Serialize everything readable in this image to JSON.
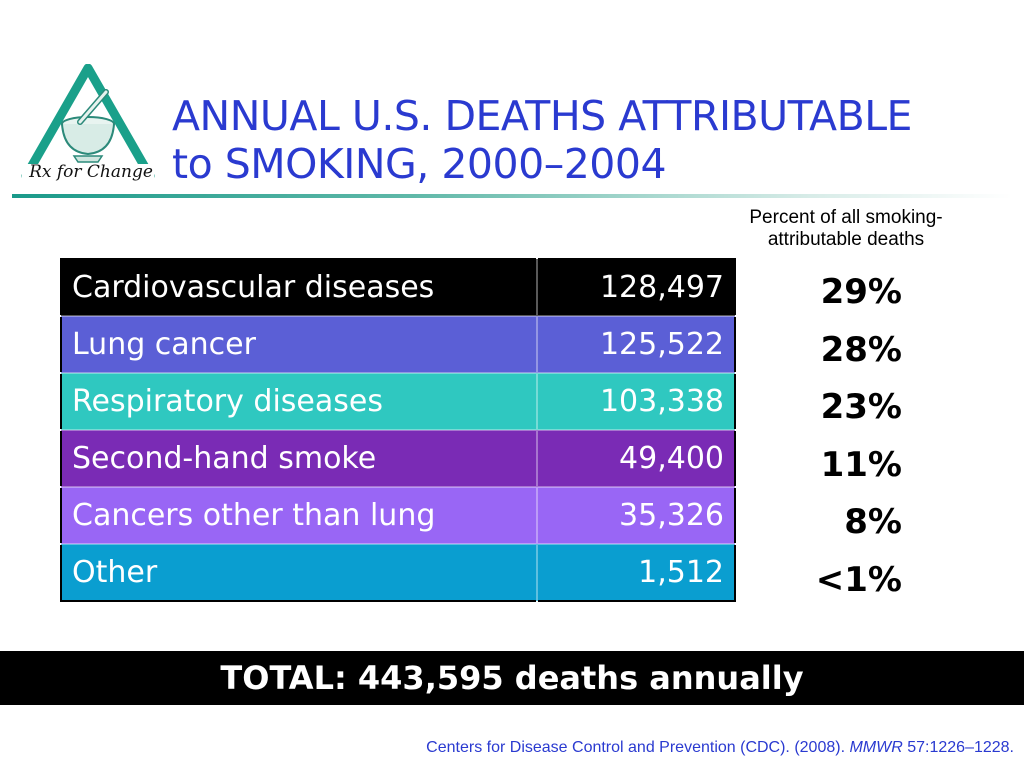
{
  "logo": {
    "text": "Rx for Change",
    "icon": "mortar-and-pestle-triangle-logo",
    "colors": {
      "triangle": "#1aa08a",
      "bowl": "#2c8a7a"
    }
  },
  "title": {
    "line1": "ANNUAL U.S. DEATHS ATTRIBUTABLE",
    "line2": "to SMOKING, 2000–2004"
  },
  "percent_header": {
    "line1": "Percent of all smoking-",
    "line2": "attributable deaths"
  },
  "table": {
    "rows": [
      {
        "category": "Cardiovascular diseases",
        "deaths": "128,497",
        "percent": "29%",
        "color": "#000000"
      },
      {
        "category": "Lung cancer",
        "deaths": "125,522",
        "percent": "28%",
        "color": "#5b5fd6"
      },
      {
        "category": "Respiratory diseases",
        "deaths": "103,338",
        "percent": "23%",
        "color": "#2fc8c0"
      },
      {
        "category": "Second-hand smoke",
        "deaths": "49,400",
        "percent": "11%",
        "color": "#7a2bb5"
      },
      {
        "category": "Cancers other than lung",
        "deaths": "35,326",
        "percent": "8%",
        "color": "#9966f5"
      },
      {
        "category": "Other",
        "deaths": "1,512",
        "percent": "<1%",
        "color": "#0a9ed0"
      }
    ]
  },
  "total": {
    "label": "TOTAL: 443,595 deaths annually"
  },
  "citation": {
    "prefix": "Centers for Disease Control and Prevention (CDC). (2008). ",
    "journal": "MMWR",
    "suffix": " 57:1226–1228."
  },
  "accent_colors": {
    "title": "#2a3ad0",
    "rule": "#1a9a8a",
    "total_bar": "#000000"
  }
}
